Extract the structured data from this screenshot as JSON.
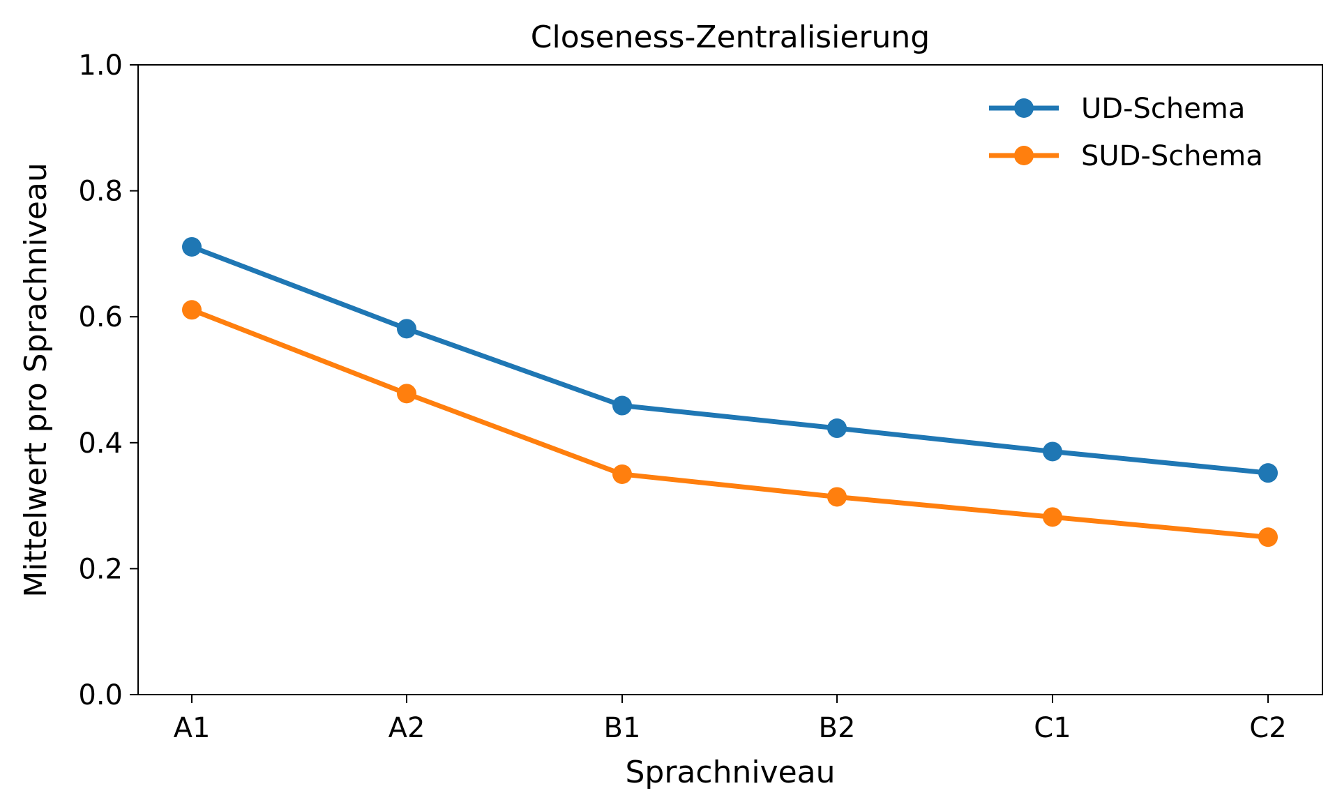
{
  "chart_data": {
    "type": "line",
    "title": "Closeness-Zentralisierung",
    "xlabel": "Sprachniveau",
    "ylabel": "Mittelwert pro Sprachniveau",
    "categories": [
      "A1",
      "A2",
      "B1",
      "B2",
      "C1",
      "C2"
    ],
    "ylim": [
      0.0,
      1.0
    ],
    "yticks": [
      "0.0",
      "0.2",
      "0.4",
      "0.6",
      "0.8",
      "1.0"
    ],
    "grid": false,
    "legend_position": "top-right",
    "series": [
      {
        "name": "UD-Schema",
        "color": "#1f77b4",
        "values": [
          0.711,
          0.581,
          0.459,
          0.423,
          0.386,
          0.352
        ]
      },
      {
        "name": "SUD-Schema",
        "color": "#ff7f0e",
        "values": [
          0.611,
          0.478,
          0.35,
          0.314,
          0.282,
          0.25
        ]
      }
    ]
  }
}
